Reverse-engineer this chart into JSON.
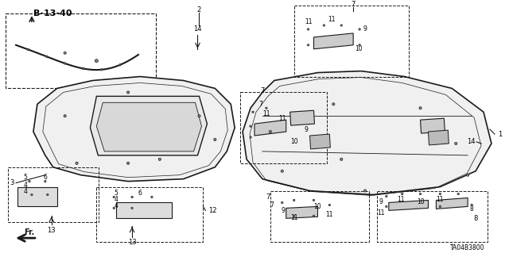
{
  "bg_color": "#ffffff",
  "line_color": "#1a1a1a",
  "part_number": "TA04B3800",
  "diagram_ref": "B-13-40",
  "fig_width": 6.4,
  "fig_height": 3.19,
  "dpi": 100
}
